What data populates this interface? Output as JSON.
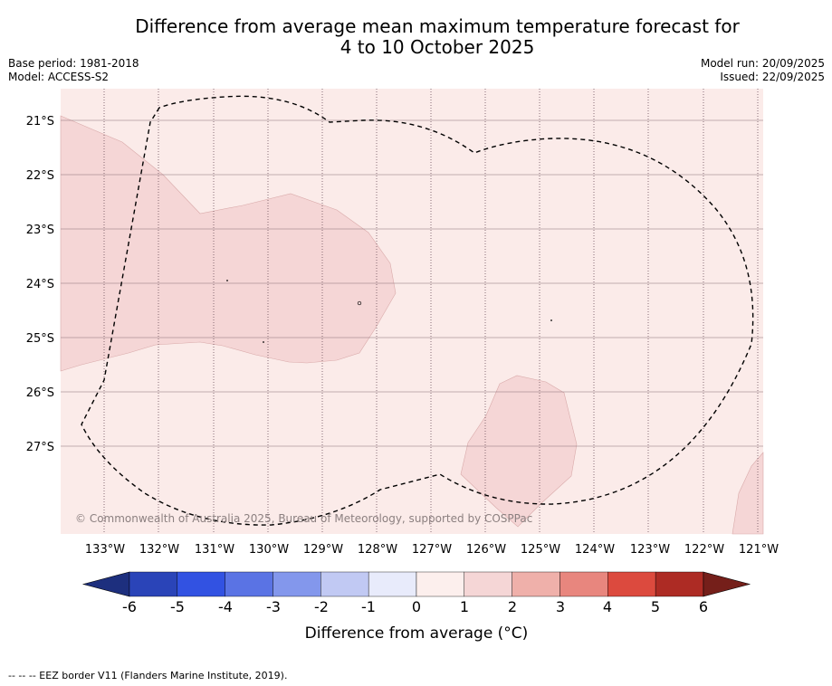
{
  "title": {
    "line1": "Difference from average mean maximum temperature forecast for",
    "line2": "4 to 10 October 2025"
  },
  "meta": {
    "base_period": "Base period: 1981-2018",
    "model": "Model: ACCESS-S2",
    "model_run": "Model run: 20/09/2025",
    "issued": "Issued: 22/09/2025"
  },
  "map": {
    "copyright": "© Commonwealth of Australia 2025, Bureau of Meteorology, supported by COSPPac",
    "lon_labels": [
      "133°W",
      "132°W",
      "131°W",
      "130°W",
      "129°W",
      "128°W",
      "127°W",
      "126°W",
      "125°W",
      "124°W",
      "123°W",
      "122°W",
      "121°W"
    ],
    "lat_labels": [
      "21°S",
      "22°S",
      "23°S",
      "24°S",
      "25°S",
      "26°S",
      "27°S"
    ],
    "colors": {
      "background_bin_0_1": "#fbebe9",
      "warm_bin_1_2": "#f5d6d6",
      "eez_border": "#000000",
      "gridline": "#6b4f5a"
    }
  },
  "colorbar": {
    "label": "Difference from average (°C)",
    "ticks": [
      "-6",
      "-5",
      "-4",
      "-3",
      "-2",
      "-1",
      "0",
      "1",
      "2",
      "3",
      "4",
      "5",
      "6"
    ],
    "colors": [
      "#1d2f7e",
      "#2a44b8",
      "#3252e2",
      "#5a73e4",
      "#8397ec",
      "#c1c9f3",
      "#e8ebfb",
      "#fcefed",
      "#f5d6d6",
      "#efb0aa",
      "#e8867e",
      "#dc4a3e",
      "#ad2b24",
      "#751f1a"
    ]
  },
  "footnote": "--  --  -- EEZ border V11 (Flanders Marine Institute, 2019)."
}
